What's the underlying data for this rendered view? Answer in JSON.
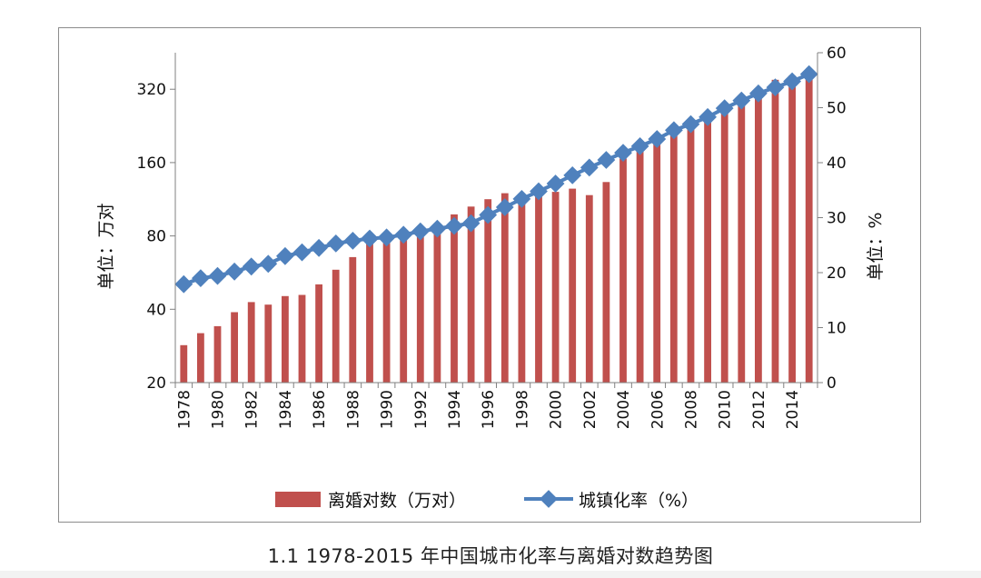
{
  "caption": "1.1 1978-2015 年中国城市化率与离婚对数趋势图",
  "colors": {
    "bar": "#c0504d",
    "line": "#4f81bd",
    "axis": "#808080"
  },
  "chart_data": {
    "type": "bar+line",
    "categories": [
      1978,
      1979,
      1980,
      1981,
      1982,
      1983,
      1984,
      1985,
      1986,
      1987,
      1988,
      1989,
      1990,
      1991,
      1992,
      1993,
      1994,
      1995,
      1996,
      1997,
      1998,
      1999,
      2000,
      2001,
      2002,
      2003,
      2004,
      2005,
      2006,
      2007,
      2008,
      2009,
      2010,
      2011,
      2012,
      2013,
      2014,
      2015
    ],
    "x_tick_labels": [
      "1978",
      "1980",
      "1982",
      "1984",
      "1986",
      "1988",
      "1990",
      "1992",
      "1994",
      "1996",
      "1998",
      "2000",
      "2002",
      "2004",
      "2006",
      "2008",
      "2010",
      "2012",
      "2014"
    ],
    "series": [
      {
        "name": "离婚对数（万对）",
        "type": "bar",
        "axis": "left",
        "values": [
          28.5,
          31.9,
          34.1,
          38.9,
          42.8,
          41.8,
          45.3,
          45.8,
          50.6,
          58.1,
          65.5,
          75.3,
          80.0,
          82.5,
          85.0,
          90.0,
          98.1,
          105.6,
          113.2,
          119.8,
          119.1,
          120.2,
          121.3,
          125.0,
          117.7,
          133.1,
          166.1,
          178.5,
          191.3,
          209.8,
          226.9,
          246.8,
          267.8,
          287.4,
          310.4,
          350.0,
          363.7,
          384.1
        ]
      },
      {
        "name": "城镇化率（%）",
        "type": "line",
        "axis": "right",
        "values": [
          17.9,
          19.0,
          19.4,
          20.2,
          21.1,
          21.6,
          23.0,
          23.7,
          24.5,
          25.3,
          25.8,
          26.2,
          26.4,
          26.9,
          27.5,
          28.0,
          28.5,
          29.0,
          30.5,
          31.9,
          33.4,
          34.8,
          36.2,
          37.7,
          39.1,
          40.5,
          41.8,
          43.0,
          44.3,
          45.9,
          47.0,
          48.3,
          49.9,
          51.3,
          52.6,
          53.7,
          54.8,
          56.1
        ]
      }
    ],
    "y_left": {
      "label": "单位：万对",
      "scale": "log",
      "ticks": [
        "20",
        "40",
        "80",
        "160",
        "320"
      ],
      "ylim": [
        20,
        452
      ]
    },
    "y_right": {
      "label": "单位：%",
      "scale": "linear",
      "ticks": [
        "0",
        "10",
        "20",
        "30",
        "40",
        "50",
        "60"
      ],
      "ylim": [
        0,
        60
      ]
    },
    "legend": {
      "position": "bottom"
    },
    "grid": false
  }
}
